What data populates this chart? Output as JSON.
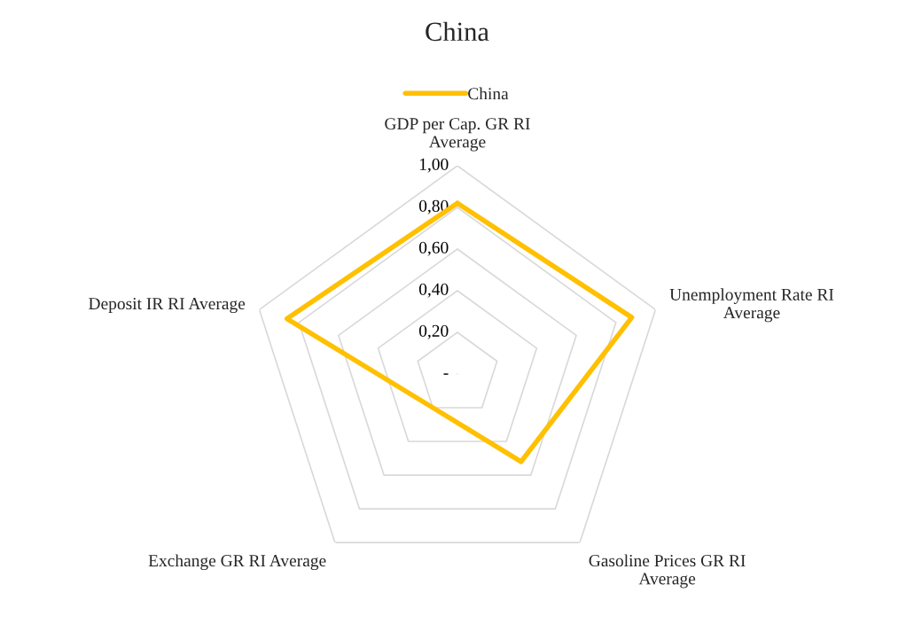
{
  "chart_data": {
    "type": "radar",
    "title": "China",
    "categories": [
      "GDP per Cap. GR RI\nAverage",
      "Unemployment Rate RI\nAverage",
      "Gasoline Prices GR RI\nAverage",
      "Exchange GR RI Average",
      "Deposit IR RI Average"
    ],
    "series": [
      {
        "name": "China",
        "color": "#ffc000",
        "values": [
          0.82,
          0.88,
          0.52,
          0.2,
          0.86
        ]
      }
    ],
    "ylim": [
      0,
      1
    ],
    "yticks": [
      {
        "value": 0,
        "label": "-"
      },
      {
        "value": 0.2,
        "label": "0,20"
      },
      {
        "value": 0.4,
        "label": "0,40"
      },
      {
        "value": 0.6,
        "label": "0,60"
      },
      {
        "value": 0.8,
        "label": "0,80"
      },
      {
        "value": 1,
        "label": "1,00"
      }
    ],
    "grid": true,
    "legend": "top",
    "marker": "none",
    "line_style": "solid"
  }
}
